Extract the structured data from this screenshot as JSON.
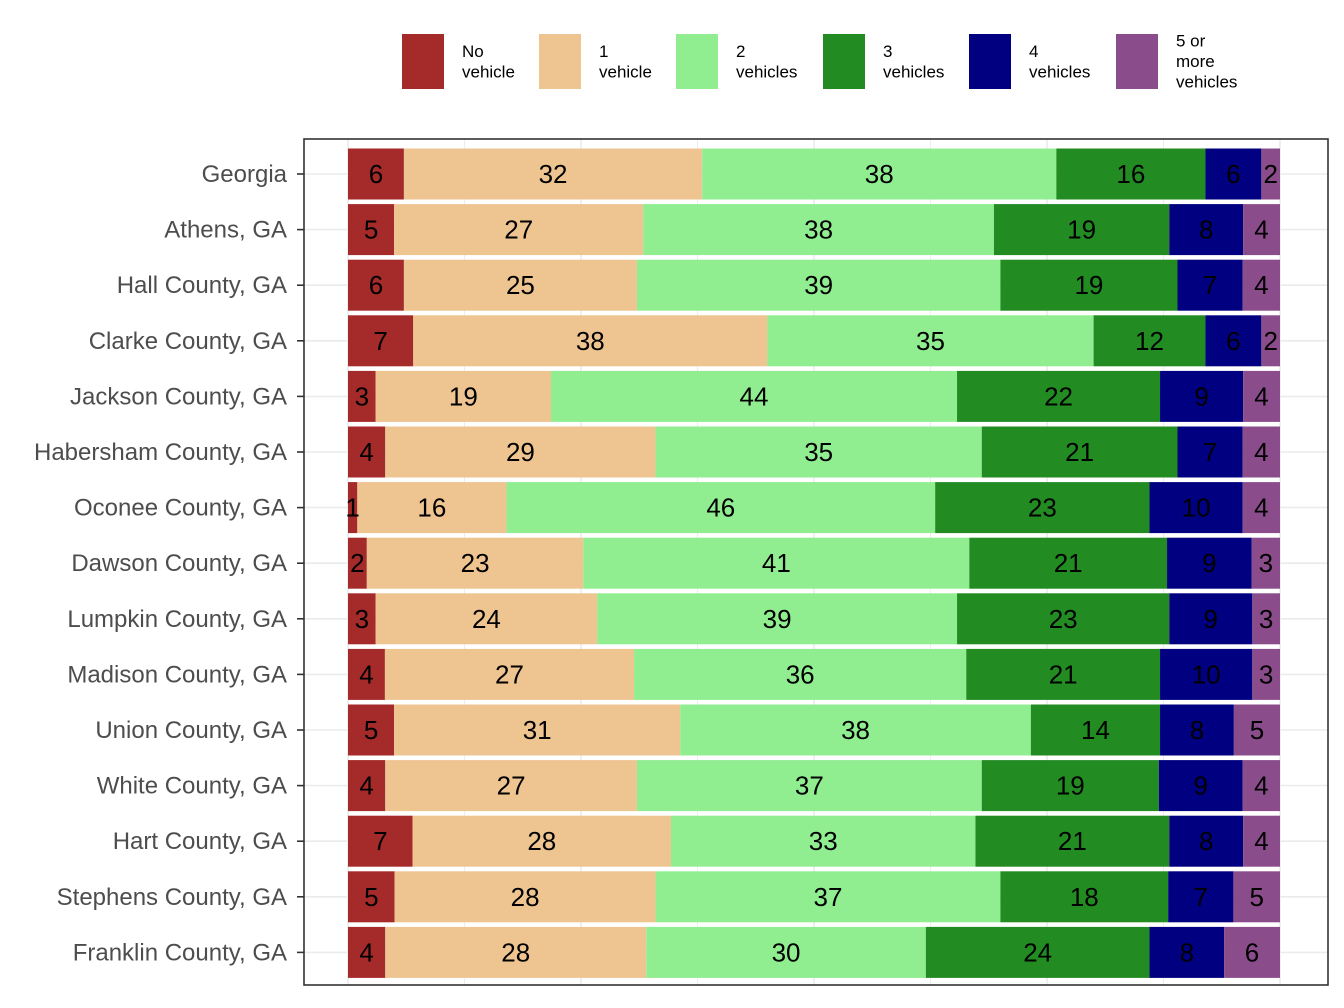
{
  "chart_data": {
    "type": "bar",
    "orientation": "horizontal",
    "stacked": true,
    "normalized": true,
    "grid": true,
    "legend_position": "top",
    "categories": [
      "Georgia",
      "Athens, GA",
      "Hall County, GA",
      "Clarke County, GA",
      "Jackson County, GA",
      "Habersham County, GA",
      "Oconee County, GA",
      "Dawson County, GA",
      "Lumpkin County, GA",
      "Madison County, GA",
      "Union County, GA",
      "White County, GA",
      "Hart County, GA",
      "Stephens County, GA",
      "Franklin County, GA"
    ],
    "series": [
      {
        "name": "No vehicle",
        "legend_lines": [
          "No",
          "vehicle"
        ],
        "color": "#A52A2A",
        "values": [
          6,
          5,
          6,
          7,
          3,
          4,
          1,
          2,
          3,
          4,
          5,
          4,
          7,
          5,
          4
        ]
      },
      {
        "name": "1 vehicle",
        "legend_lines": [
          "1",
          "vehicle"
        ],
        "color": "#EEC591",
        "values": [
          32,
          27,
          25,
          38,
          19,
          29,
          16,
          23,
          24,
          27,
          31,
          27,
          28,
          28,
          28
        ]
      },
      {
        "name": "2 vehicles",
        "legend_lines": [
          "2",
          "vehicles"
        ],
        "color": "#90EE90",
        "values": [
          38,
          38,
          39,
          35,
          44,
          35,
          46,
          41,
          39,
          36,
          38,
          37,
          33,
          37,
          30
        ]
      },
      {
        "name": "3 vehicles",
        "legend_lines": [
          "3",
          "vehicles"
        ],
        "color": "#228B22",
        "values": [
          16,
          19,
          19,
          12,
          22,
          21,
          23,
          21,
          23,
          21,
          14,
          19,
          21,
          18,
          24
        ]
      },
      {
        "name": "4 vehicles",
        "legend_lines": [
          "4",
          "vehicles"
        ],
        "color": "#000080",
        "values": [
          6,
          8,
          7,
          6,
          9,
          7,
          10,
          9,
          9,
          10,
          8,
          9,
          8,
          7,
          8
        ]
      },
      {
        "name": "5 or more vehicles",
        "legend_lines": [
          "5 or",
          "more",
          "vehicles"
        ],
        "color": "#8B4C8B",
        "values": [
          2,
          4,
          4,
          2,
          4,
          4,
          4,
          3,
          3,
          3,
          5,
          4,
          4,
          5,
          6
        ]
      }
    ]
  }
}
